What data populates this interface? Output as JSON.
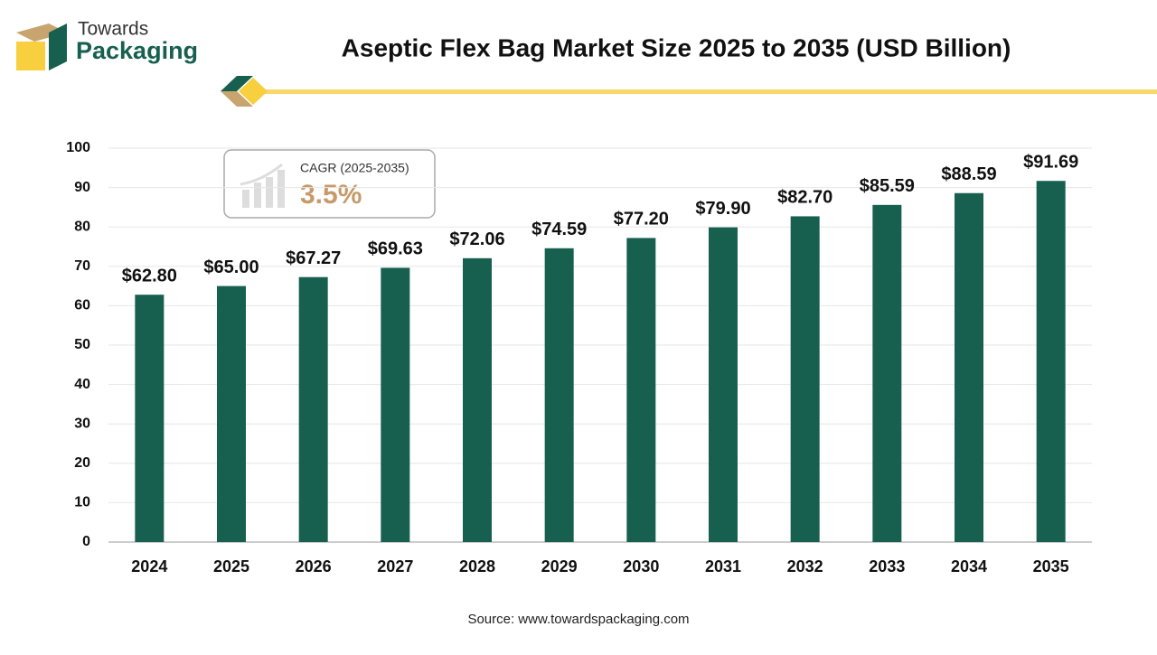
{
  "chart_data": {
    "type": "bar",
    "title": "Aseptic Flex Bag Market Size 2025 to 2035 (USD Billion)",
    "categories": [
      "2024",
      "2025",
      "2026",
      "2027",
      "2028",
      "2029",
      "2030",
      "2031",
      "2032",
      "2033",
      "2034",
      "2035"
    ],
    "values": [
      62.8,
      65.0,
      67.27,
      69.63,
      72.06,
      74.59,
      77.2,
      79.9,
      82.7,
      85.59,
      88.59,
      91.69
    ],
    "value_labels": [
      "$62.80",
      "$65.00",
      "$67.27",
      "$69.63",
      "$72.06",
      "$74.59",
      "$77.20",
      "$79.90",
      "$82.70",
      "$85.59",
      "$88.59",
      "$91.69"
    ],
    "color": "#17604f",
    "ylim": [
      0,
      100
    ],
    "yticks": [
      0,
      10,
      20,
      30,
      40,
      50,
      60,
      70,
      80,
      90,
      100
    ],
    "grid": true
  },
  "logo": {
    "line1": "Towards",
    "line2": "Packaging"
  },
  "cagr": {
    "label": "CAGR (2025-2035)",
    "value": "3.5%"
  },
  "source": "Source: www.towardspackaging.com"
}
